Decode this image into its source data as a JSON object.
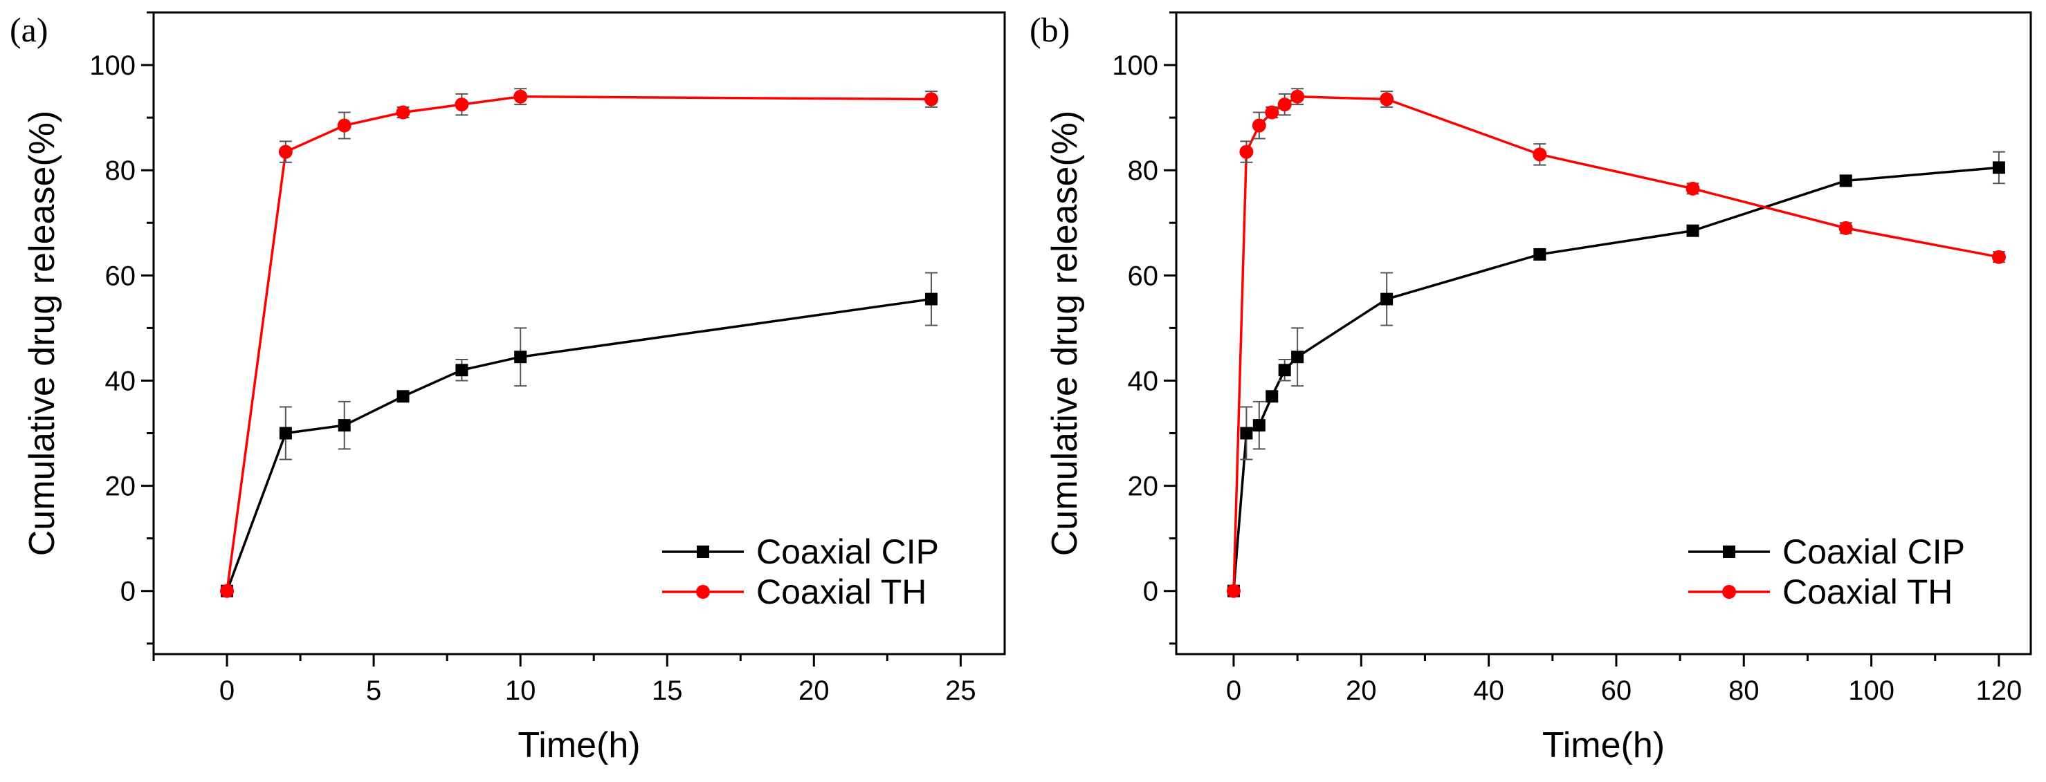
{
  "colors": {
    "cip": "#000000",
    "th": "#ff0000",
    "axis": "#000000",
    "background": "#ffffff"
  },
  "chart_data": [
    {
      "type": "line",
      "panel_label": "(a)",
      "title": "",
      "xlabel": "Time(h)",
      "ylabel": "Cumulative drug release(%)",
      "xlim": [
        -2.5,
        26.5
      ],
      "ylim": [
        -12,
        110
      ],
      "xticks": [
        0,
        5,
        10,
        15,
        20,
        25
      ],
      "yticks": [
        0,
        20,
        40,
        60,
        80,
        100
      ],
      "grid": false,
      "legend": "bottom-right",
      "series": [
        {
          "name": "Coaxial CIP",
          "marker": "square",
          "color": "#000000",
          "x": [
            0,
            2,
            4,
            6,
            8,
            10,
            24
          ],
          "y": [
            0,
            30,
            31.5,
            37,
            42,
            44.5,
            55.5
          ],
          "err": [
            0,
            5,
            4.5,
            1,
            2,
            5.5,
            5
          ]
        },
        {
          "name": "Coaxial TH",
          "marker": "circle",
          "color": "#ff0000",
          "x": [
            0,
            2,
            4,
            6,
            8,
            10,
            24
          ],
          "y": [
            0,
            83.5,
            88.5,
            91,
            92.5,
            94,
            93.5
          ],
          "err": [
            0,
            2,
            2.5,
            1,
            2,
            1.5,
            1.5
          ]
        }
      ]
    },
    {
      "type": "line",
      "panel_label": "(b)",
      "title": "",
      "xlabel": "Time(h)",
      "ylabel": "Cumulative drug release(%)",
      "xlim": [
        -9,
        125
      ],
      "ylim": [
        -12,
        110
      ],
      "xticks": [
        0,
        20,
        40,
        60,
        80,
        100,
        120
      ],
      "yticks": [
        0,
        20,
        40,
        60,
        80,
        100
      ],
      "grid": false,
      "legend": "bottom-right",
      "series": [
        {
          "name": "Coaxial CIP",
          "marker": "square",
          "color": "#000000",
          "x": [
            0,
            2,
            4,
            6,
            8,
            10,
            24,
            48,
            72,
            96,
            120
          ],
          "y": [
            0,
            30,
            31.5,
            37,
            42,
            44.5,
            55.5,
            64,
            68.5,
            78,
            80.5
          ],
          "err": [
            0,
            5,
            4.5,
            1,
            2,
            5.5,
            5,
            1,
            1,
            1,
            3
          ]
        },
        {
          "name": "Coaxial TH",
          "marker": "circle",
          "color": "#ff0000",
          "x": [
            0,
            2,
            4,
            6,
            8,
            10,
            24,
            48,
            72,
            96,
            120
          ],
          "y": [
            0,
            83.5,
            88.5,
            91,
            92.5,
            94,
            93.5,
            83,
            76.5,
            69,
            63.5
          ],
          "err": [
            0,
            2,
            2.5,
            1,
            2,
            1.5,
            1.5,
            2,
            1,
            1,
            1
          ]
        }
      ]
    }
  ]
}
